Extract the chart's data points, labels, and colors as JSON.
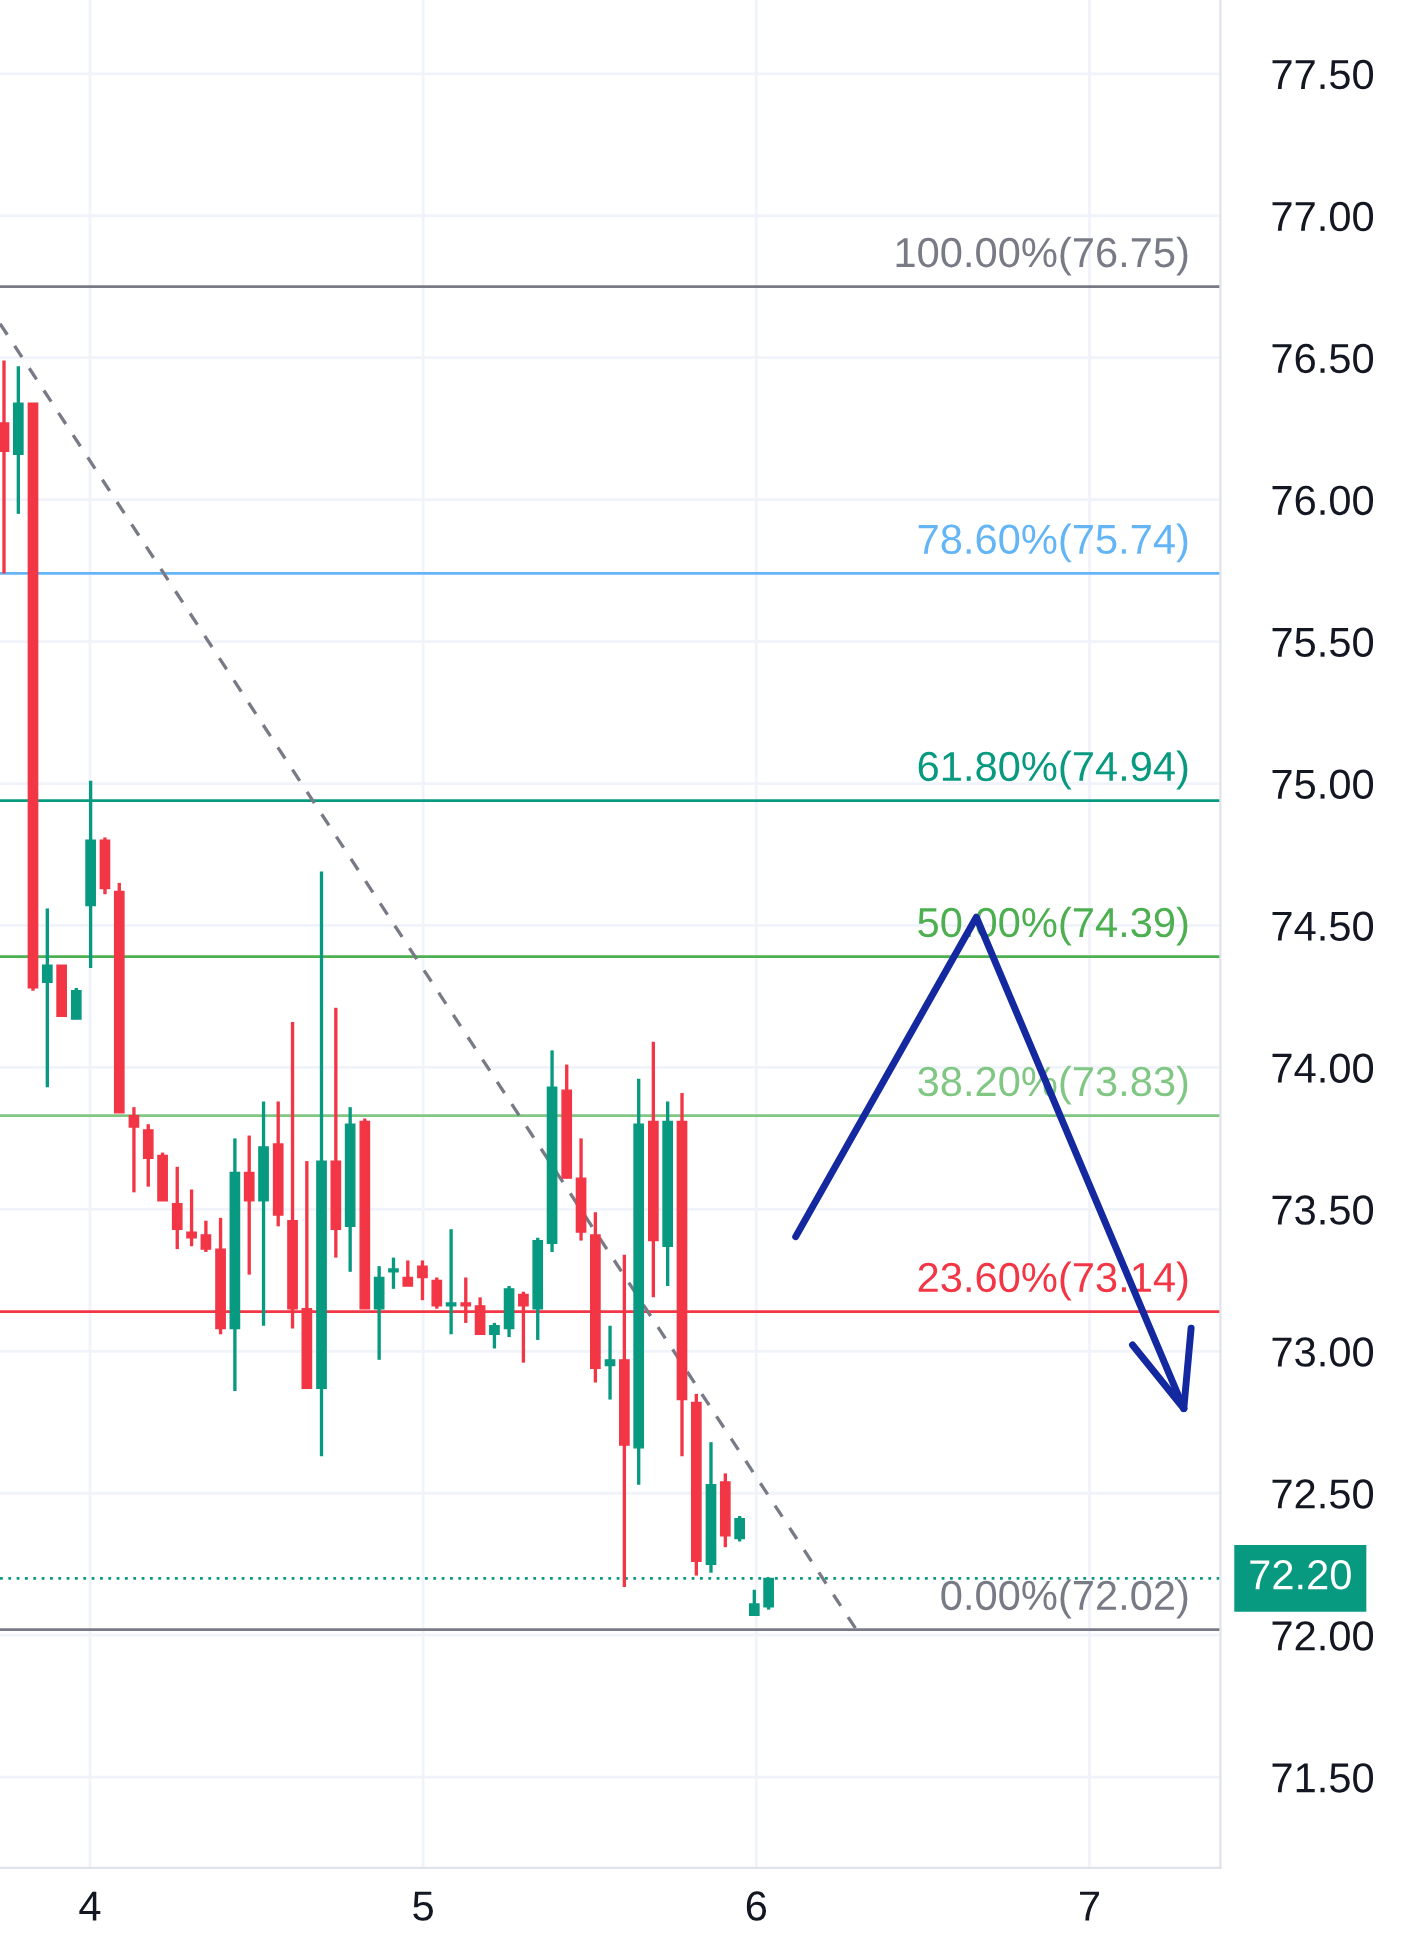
{
  "chart_data": {
    "type": "candlestick",
    "x": [
      3.742,
      3.785,
      3.829,
      3.872,
      3.915,
      3.959,
      4.002,
      4.045,
      4.088,
      4.132,
      4.175,
      4.218,
      4.262,
      4.305,
      4.348,
      4.392,
      4.435,
      4.478,
      4.521,
      4.565,
      4.608,
      4.651,
      4.695,
      4.738,
      4.781,
      4.825,
      4.868,
      4.911,
      4.954,
      4.998,
      5.041,
      5.084,
      5.128,
      5.171,
      5.214,
      5.258,
      5.301,
      5.344,
      5.387,
      5.431,
      5.474,
      5.517,
      5.561,
      5.604,
      5.647,
      5.691,
      5.734,
      5.777,
      5.82,
      5.864,
      5.907,
      5.95,
      5.994,
      6.037
    ],
    "ohlc": [
      [
        76.27,
        76.49,
        75.74,
        76.17
      ],
      [
        76.16,
        76.47,
        75.95,
        76.34
      ],
      [
        76.34,
        76.34,
        74.27,
        74.28
      ],
      [
        74.3,
        74.56,
        73.93,
        74.36
      ],
      [
        74.36,
        74.36,
        74.18,
        74.18
      ],
      [
        74.17,
        74.28,
        74.17,
        74.27
      ],
      [
        74.57,
        75.01,
        74.35,
        74.8
      ],
      [
        74.8,
        74.81,
        74.61,
        74.63
      ],
      [
        74.62,
        74.65,
        73.84,
        73.84
      ],
      [
        73.83,
        73.86,
        73.56,
        73.79
      ],
      [
        73.78,
        73.8,
        73.58,
        73.68
      ],
      [
        73.69,
        73.7,
        73.53,
        73.53
      ],
      [
        73.52,
        73.65,
        73.36,
        73.43
      ],
      [
        73.42,
        73.57,
        73.37,
        73.4
      ],
      [
        73.41,
        73.46,
        73.35,
        73.36
      ],
      [
        73.36,
        73.47,
        73.06,
        73.08
      ],
      [
        73.08,
        73.75,
        72.86,
        73.63
      ],
      [
        73.63,
        73.76,
        73.27,
        73.53
      ],
      [
        73.53,
        73.88,
        73.09,
        73.72
      ],
      [
        73.73,
        73.88,
        73.44,
        73.48
      ],
      [
        73.46,
        74.16,
        73.08,
        73.15
      ],
      [
        73.15,
        73.67,
        72.87,
        72.87
      ],
      [
        72.87,
        74.69,
        72.63,
        73.67
      ],
      [
        73.67,
        74.21,
        73.33,
        73.43
      ],
      [
        73.44,
        73.86,
        73.28,
        73.8
      ],
      [
        73.81,
        73.82,
        73.15,
        73.15
      ],
      [
        73.15,
        73.3,
        72.97,
        73.26
      ],
      [
        73.28,
        73.33,
        73.22,
        73.29
      ],
      [
        73.26,
        73.32,
        73.23,
        73.23
      ],
      [
        73.3,
        73.32,
        73.18,
        73.26
      ],
      [
        73.25,
        73.26,
        73.15,
        73.16
      ],
      [
        73.16,
        73.43,
        73.06,
        73.17
      ],
      [
        73.17,
        73.26,
        73.1,
        73.16
      ],
      [
        73.16,
        73.19,
        73.06,
        73.06
      ],
      [
        73.06,
        73.1,
        73.01,
        73.09
      ],
      [
        73.08,
        73.23,
        73.05,
        73.22
      ],
      [
        73.2,
        73.21,
        72.96,
        73.16
      ],
      [
        73.15,
        73.4,
        73.04,
        73.39
      ],
      [
        73.38,
        74.06,
        73.35,
        73.93
      ],
      [
        73.92,
        74.01,
        73.61,
        73.61
      ],
      [
        73.61,
        73.75,
        73.39,
        73.42
      ],
      [
        73.41,
        73.49,
        72.89,
        72.94
      ],
      [
        72.95,
        73.09,
        72.83,
        72.97
      ],
      [
        72.97,
        73.34,
        72.17,
        72.67
      ],
      [
        72.66,
        73.96,
        72.53,
        73.8
      ],
      [
        73.81,
        74.09,
        73.19,
        73.39
      ],
      [
        73.37,
        73.88,
        73.23,
        73.81
      ],
      [
        73.81,
        73.91,
        72.63,
        72.83
      ],
      [
        72.82,
        72.85,
        72.21,
        72.26
      ],
      [
        72.25,
        72.68,
        72.22,
        72.53
      ],
      [
        72.54,
        72.57,
        72.31,
        72.35
      ],
      [
        72.34,
        72.42,
        72.33,
        72.41
      ],
      [
        72.07,
        72.16,
        72.07,
        72.11
      ],
      [
        72.1,
        72.2,
        72.09,
        72.2
      ]
    ],
    "colors": [
      "#f23645",
      "#089981",
      "#f23645",
      "#089981",
      "#f23645",
      "#089981",
      "#089981",
      "#f23645",
      "#f23645",
      "#f23645",
      "#f23645",
      "#f23645",
      "#f23645",
      "#f23645",
      "#f23645",
      "#f23645",
      "#089981",
      "#f23645",
      "#089981",
      "#f23645",
      "#f23645",
      "#f23645",
      "#089981",
      "#f23645",
      "#089981",
      "#f23645",
      "#089981",
      "#089981",
      "#f23645",
      "#f23645",
      "#f23645",
      "#089981",
      "#f23645",
      "#f23645",
      "#089981",
      "#089981",
      "#f23645",
      "#089981",
      "#089981",
      "#f23645",
      "#f23645",
      "#f23645",
      "#089981",
      "#f23645",
      "#089981",
      "#f23645",
      "#089981",
      "#f23645",
      "#f23645",
      "#089981",
      "#f23645",
      "#089981",
      "#089981",
      "#089981"
    ],
    "series": [
      {
        "type": "line",
        "x": [
          3.73,
          6.3
        ],
        "values": [
          76.62,
          72.02
        ],
        "color": "#787b86",
        "line_style": "dashed"
      }
    ],
    "ref_lines": [
      {
        "axis": "y",
        "value": 76.75,
        "label": "100.00%(76.75)",
        "color": "#787b86"
      },
      {
        "axis": "y",
        "value": 75.74,
        "label": "78.60%(75.74)",
        "color": "#64b5f6"
      },
      {
        "axis": "y",
        "value": 74.94,
        "label": "61.80%(74.94)",
        "color": "#089981"
      },
      {
        "axis": "y",
        "value": 74.39,
        "label": "50.00%(74.39)",
        "color": "#4caf50"
      },
      {
        "axis": "y",
        "value": 73.83,
        "label": "38.20%(73.83)",
        "color": "#81c784"
      },
      {
        "axis": "y",
        "value": 73.14,
        "label": "23.60%(73.14)",
        "color": "#f23645"
      },
      {
        "axis": "y",
        "value": 72.02,
        "label": "0.00%(72.02)",
        "color": "#787b86"
      },
      {
        "axis": "y",
        "value": 72.2,
        "label": "72.20",
        "color": "#089981",
        "line_style": "dotted"
      }
    ],
    "xlim": [
      3.73,
      7.393
    ],
    "ylim": [
      71.18,
      77.76
    ],
    "xticks": [
      4,
      5,
      6,
      7
    ],
    "yticks": [
      {
        "value": 71.5,
        "label": "71.50"
      },
      {
        "value": 72.0,
        "label": "72.00"
      },
      {
        "value": 72.5,
        "label": "72.50"
      },
      {
        "value": 73.0,
        "label": "73.00"
      },
      {
        "value": 73.5,
        "label": "73.50"
      },
      {
        "value": 74.0,
        "label": "74.00"
      },
      {
        "value": 74.5,
        "label": "74.50"
      },
      {
        "value": 75.0,
        "label": "75.00"
      },
      {
        "value": 75.5,
        "label": "75.50"
      },
      {
        "value": 76.0,
        "label": "76.00"
      },
      {
        "value": 76.5,
        "label": "76.50"
      },
      {
        "value": 77.0,
        "label": "77.00"
      },
      {
        "value": 77.5,
        "label": "77.50"
      }
    ],
    "grid": true
  }
}
